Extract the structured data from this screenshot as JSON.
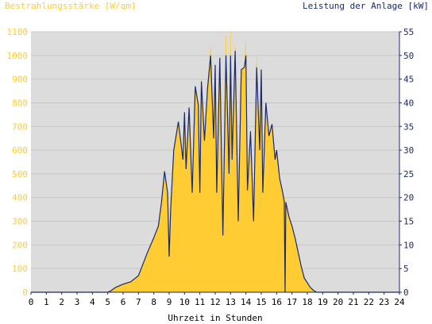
{
  "chart_data": {
    "type": "area",
    "left_axis_label": "Bestrahlungsstärke [W/qm]",
    "right_axis_label": "Leistung der Anlage [kW]",
    "xlabel": "Uhrzeit in Stunden",
    "xlim": [
      0,
      24
    ],
    "ylim_left": [
      0,
      1100
    ],
    "ylim_right": [
      0,
      55
    ],
    "x_ticks": [
      "0",
      "1",
      "2",
      "3",
      "4",
      "5",
      "6",
      "7",
      "8",
      "9",
      "10",
      "11",
      "12",
      "13",
      "14",
      "15",
      "16",
      "17",
      "18",
      "19",
      "20",
      "21",
      "22",
      "23",
      "24"
    ],
    "y_ticks_left": [
      "0",
      "100",
      "200",
      "300",
      "400",
      "500",
      "600",
      "700",
      "800",
      "900",
      "1000",
      "1100"
    ],
    "y_ticks_right": [
      "0",
      "5",
      "10",
      "15",
      "20",
      "25",
      "30",
      "35",
      "40",
      "45",
      "50",
      "55"
    ],
    "grid": true,
    "series": [
      {
        "name": "Bestrahlungsstärke [W/qm]",
        "axis": "left",
        "color": "#ffcc33",
        "x": [
          0,
          5,
          5.2,
          5.5,
          6,
          6.5,
          7,
          7.3,
          7.6,
          8,
          8.3,
          8.5,
          8.7,
          8.9,
          9,
          9.1,
          9.3,
          9.6,
          9.9,
          10,
          10.1,
          10.3,
          10.5,
          10.7,
          10.9,
          11,
          11.1,
          11.3,
          11.5,
          11.7,
          11.9,
          12,
          12.1,
          12.3,
          12.5,
          12.7,
          12.9,
          13,
          13.1,
          13.3,
          13.5,
          13.7,
          13.9,
          14,
          14.1,
          14.3,
          14.5,
          14.7,
          14.9,
          15,
          15.1,
          15.3,
          15.5,
          15.7,
          15.9,
          16,
          16.2,
          16.4,
          16.6,
          16.8,
          17,
          17.2,
          17.4,
          17.6,
          17.8,
          18,
          18.2,
          18.4,
          18.6,
          18.8,
          19,
          19.2,
          19.5,
          19.8,
          20,
          20.3,
          24
        ],
        "values": [
          0,
          0,
          5,
          20,
          35,
          45,
          70,
          120,
          170,
          230,
          280,
          380,
          520,
          420,
          150,
          350,
          600,
          720,
          560,
          760,
          520,
          780,
          420,
          870,
          790,
          420,
          900,
          640,
          860,
          1040,
          650,
          960,
          420,
          990,
          240,
          1080,
          500,
          1100,
          560,
          1050,
          300,
          940,
          950,
          1060,
          430,
          680,
          300,
          1000,
          600,
          950,
          420,
          800,
          660,
          710,
          560,
          600,
          480,
          420,
          380,
          320,
          280,
          230,
          170,
          110,
          60,
          40,
          20,
          8,
          0,
          0,
          0,
          0,
          0,
          0,
          0,
          0,
          0
        ]
      },
      {
        "name": "Leistung der Anlage [kW]",
        "axis": "right",
        "color": "#1a2a6c",
        "x": [
          0,
          5,
          5.2,
          5.5,
          6,
          6.5,
          7,
          7.3,
          7.6,
          8,
          8.3,
          8.5,
          8.7,
          8.9,
          9,
          9.1,
          9.3,
          9.6,
          9.9,
          10,
          10.1,
          10.3,
          10.5,
          10.7,
          10.9,
          11,
          11.1,
          11.3,
          11.5,
          11.7,
          11.9,
          12,
          12.1,
          12.3,
          12.5,
          12.7,
          12.9,
          13,
          13.1,
          13.3,
          13.5,
          13.7,
          13.9,
          14,
          14.1,
          14.3,
          14.5,
          14.7,
          14.9,
          15,
          15.1,
          15.3,
          15.5,
          15.7,
          15.9,
          16,
          16.2,
          16.4,
          16.5,
          16.55,
          16.6,
          16.8,
          17,
          17.2,
          17.4,
          17.6,
          17.8,
          18,
          18.2,
          18.4,
          18.6,
          18.8,
          19,
          19.2,
          19.5,
          19.8,
          20,
          20.3,
          24
        ],
        "values": [
          0,
          0,
          0.3,
          1,
          1.7,
          2.2,
          3.5,
          6,
          8.5,
          11.5,
          14,
          19,
          25.5,
          21,
          7.5,
          17.5,
          30,
          36,
          28,
          38,
          26,
          39,
          21,
          43.5,
          39.5,
          21,
          44.5,
          32,
          43,
          50,
          32.5,
          48,
          21,
          49.5,
          12,
          50,
          25,
          50,
          28,
          51,
          15,
          47,
          47.5,
          50,
          21.5,
          34,
          15,
          47.5,
          30,
          47,
          21,
          40,
          33,
          35.5,
          28,
          30,
          24,
          21,
          19,
          0,
          19,
          16,
          14,
          11.5,
          8.5,
          5.5,
          3,
          2,
          1,
          0.4,
          0,
          0,
          0,
          0,
          0,
          0,
          0,
          0,
          0
        ]
      }
    ]
  }
}
